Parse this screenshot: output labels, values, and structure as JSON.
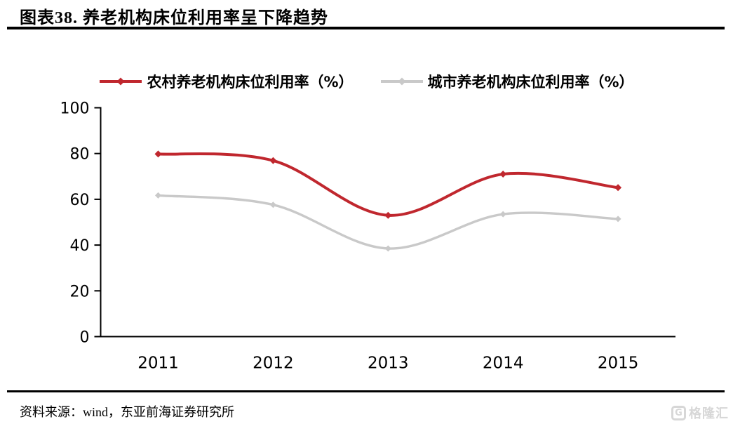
{
  "header": {
    "title": "图表38.  养老机构床位利用率呈下降趋势"
  },
  "chart_data": {
    "type": "line",
    "smooth": true,
    "marker": "diamond",
    "grid": false,
    "legend_position": "top",
    "categories": [
      "2011",
      "2012",
      "2013",
      "2014",
      "2015"
    ],
    "series": [
      {
        "name": "农村养老机构床位利用率（%）",
        "color": "#c0272e",
        "line_width": 4,
        "values": [
          79.8,
          76.9,
          53.0,
          71.0,
          65.1
        ]
      },
      {
        "name": "城市养老机构床位利用率（%）",
        "color": "#c9c9c9",
        "line_width": 3.4,
        "values": [
          61.7,
          57.6,
          38.5,
          53.5,
          51.4
        ]
      }
    ],
    "ylim": [
      0,
      100
    ],
    "yticks": [
      0,
      20,
      40,
      60,
      80,
      100
    ],
    "xlabel": "",
    "ylabel": ""
  },
  "footer": {
    "source": "资料来源：wind，东亚前海证券研究所",
    "logo_text": "格隆汇",
    "logo_letter": "G"
  },
  "colors": {
    "axis": "#000000",
    "tick_label": "#000000"
  }
}
